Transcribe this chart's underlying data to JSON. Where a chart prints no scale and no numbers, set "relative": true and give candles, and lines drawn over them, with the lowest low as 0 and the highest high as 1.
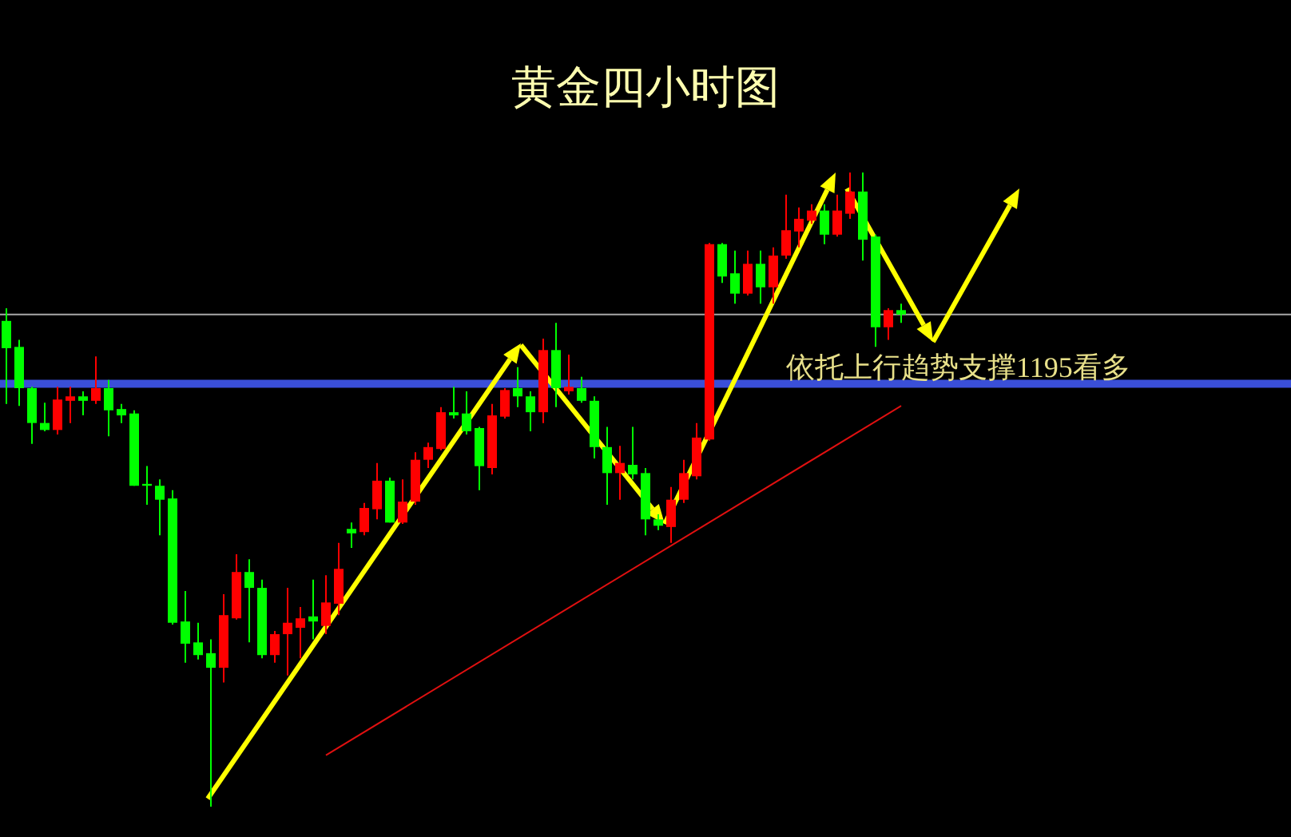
{
  "chart_data": {
    "type": "candlestick",
    "title": "黄金四小时图",
    "relative": true,
    "annotations": [
      "依托上行趋势支撑1195看多"
    ],
    "categories": [
      null,
      null,
      null,
      null,
      null,
      null,
      null,
      null,
      null,
      null,
      null,
      null,
      null,
      null,
      null,
      null,
      null,
      null,
      null,
      null,
      null,
      null,
      null,
      null,
      null,
      null,
      null,
      null,
      null,
      null,
      null,
      null,
      null,
      null,
      null,
      null,
      null,
      null,
      null,
      null,
      null,
      null,
      null,
      null,
      null,
      null,
      null,
      null,
      null,
      null,
      null,
      null,
      null,
      null,
      null,
      null,
      null,
      null,
      null,
      null,
      null,
      null,
      null,
      null,
      null,
      null,
      null,
      null,
      null,
      null,
      null
    ],
    "ohlc": [
      [
        0.766,
        0.786,
        0.635,
        0.723
      ],
      [
        0.725,
        0.736,
        0.632,
        0.66
      ],
      [
        0.66,
        0.662,
        0.572,
        0.605
      ],
      [
        0.605,
        0.637,
        0.592,
        0.594
      ],
      [
        0.594,
        0.662,
        0.587,
        0.642
      ],
      [
        0.64,
        0.662,
        0.605,
        0.647
      ],
      [
        0.647,
        0.655,
        0.617,
        0.64
      ],
      [
        0.64,
        0.71,
        0.635,
        0.66
      ],
      [
        0.66,
        0.673,
        0.584,
        0.625
      ],
      [
        0.627,
        0.635,
        0.605,
        0.617
      ],
      [
        0.62,
        0.625,
        0.506,
        0.506
      ],
      [
        0.509,
        0.537,
        0.476,
        0.506
      ],
      [
        0.506,
        0.516,
        0.428,
        0.484
      ],
      [
        0.486,
        0.499,
        0.287,
        0.29
      ],
      [
        0.292,
        0.34,
        0.227,
        0.257
      ],
      [
        0.259,
        0.29,
        0.232,
        0.239
      ],
      [
        0.242,
        0.264,
        0,
        0.219
      ],
      [
        0.219,
        0.335,
        0.196,
        0.302
      ],
      [
        0.297,
        0.398,
        0.295,
        0.37
      ],
      [
        0.37,
        0.39,
        0.259,
        0.345
      ],
      [
        0.345,
        0.358,
        0.234,
        0.239
      ],
      [
        0.239,
        0.277,
        0.227,
        0.272
      ],
      [
        0.272,
        0.345,
        0.207,
        0.29
      ],
      [
        0.282,
        0.315,
        0.234,
        0.297
      ],
      [
        0.3,
        0.358,
        0.264,
        0.292
      ],
      [
        0.285,
        0.365,
        0.272,
        0.322
      ],
      [
        0.32,
        0.416,
        0.302,
        0.375
      ],
      [
        0.438,
        0.448,
        0.408,
        0.431
      ],
      [
        0.433,
        0.479,
        0.428,
        0.471
      ],
      [
        0.469,
        0.542,
        0.453,
        0.514
      ],
      [
        0.514,
        0.519,
        0.448,
        0.448
      ],
      [
        0.448,
        0.516,
        0.446,
        0.481
      ],
      [
        0.481,
        0.559,
        0.476,
        0.547
      ],
      [
        0.547,
        0.574,
        0.534,
        0.567
      ],
      [
        0.564,
        0.63,
        0.562,
        0.622
      ],
      [
        0.622,
        0.662,
        0.612,
        0.617
      ],
      [
        0.62,
        0.655,
        0.587,
        0.592
      ],
      [
        0.597,
        0.599,
        0.499,
        0.537
      ],
      [
        0.534,
        0.635,
        0.524,
        0.617
      ],
      [
        0.615,
        0.66,
        0.612,
        0.657
      ],
      [
        0.66,
        0.693,
        0.63,
        0.647
      ],
      [
        0.647,
        0.655,
        0.592,
        0.622
      ],
      [
        0.622,
        0.738,
        0.605,
        0.72
      ],
      [
        0.72,
        0.763,
        0.63,
        0.66
      ],
      [
        0.655,
        0.713,
        0.65,
        0.662
      ],
      [
        0.66,
        0.678,
        0.637,
        0.64
      ],
      [
        0.64,
        0.647,
        0.549,
        0.567
      ],
      [
        0.567,
        0.599,
        0.476,
        0.526
      ],
      [
        0.526,
        0.569,
        0.484,
        0.542
      ],
      [
        0.539,
        0.599,
        0.516,
        0.524
      ],
      [
        0.526,
        0.534,
        0.428,
        0.453
      ],
      [
        0.453,
        0.461,
        0.436,
        0.443
      ],
      [
        0.441,
        0.504,
        0.416,
        0.484
      ],
      [
        0.484,
        0.547,
        0.479,
        0.526
      ],
      [
        0.521,
        0.605,
        0.516,
        0.582
      ],
      [
        0.579,
        0.889,
        0.577,
        0.887
      ],
      [
        0.887,
        0.889,
        0.826,
        0.836
      ],
      [
        0.841,
        0.877,
        0.793,
        0.809
      ],
      [
        0.809,
        0.877,
        0.806,
        0.856
      ],
      [
        0.856,
        0.877,
        0.793,
        0.819
      ],
      [
        0.819,
        0.882,
        0.793,
        0.869
      ],
      [
        0.869,
        0.965,
        0.864,
        0.909
      ],
      [
        0.907,
        0.945,
        0.882,
        0.927
      ],
      [
        0.924,
        0.95,
        0.919,
        0.94
      ],
      [
        0.94,
        0.95,
        0.887,
        0.902
      ],
      [
        0.902,
        0.965,
        0.899,
        0.94
      ],
      [
        0.935,
        1,
        0.927,
        0.97
      ],
      [
        0.97,
        1,
        0.861,
        0.894
      ],
      [
        0.899,
        0.902,
        0.725,
        0.756
      ],
      [
        0.756,
        0.786,
        0.736,
        0.783
      ],
      [
        0.783,
        0.793,
        0.763,
        0.776
      ]
    ],
    "colors": [
      "#00ff00",
      "#00ff00",
      "#00ff00",
      "#00ff00",
      "#ff0000",
      "#ff0000",
      "#00ff00",
      "#ff0000",
      "#00ff00",
      "#00ff00",
      "#00ff00",
      "#00ff00",
      "#00ff00",
      "#00ff00",
      "#00ff00",
      "#00ff00",
      "#00ff00",
      "#ff0000",
      "#ff0000",
      "#00ff00",
      "#00ff00",
      "#ff0000",
      "#ff0000",
      "#ff0000",
      "#00ff00",
      "#ff0000",
      "#ff0000",
      "#00ff00",
      "#ff0000",
      "#ff0000",
      "#00ff00",
      "#ff0000",
      "#ff0000",
      "#ff0000",
      "#ff0000",
      "#00ff00",
      "#00ff00",
      "#00ff00",
      "#ff0000",
      "#ff0000",
      "#00ff00",
      "#00ff00",
      "#ff0000",
      "#00ff00",
      "#ff0000",
      "#00ff00",
      "#00ff00",
      "#00ff00",
      "#ff0000",
      "#00ff00",
      "#00ff00",
      "#00ff00",
      "#ff0000",
      "#ff0000",
      "#ff0000",
      "#ff0000",
      "#00ff00",
      "#00ff00",
      "#ff0000",
      "#00ff00",
      "#ff0000",
      "#ff0000",
      "#ff0000",
      "#ff0000",
      "#00ff00",
      "#ff0000",
      "#ff0000",
      "#00ff00",
      "#00ff00",
      "#ff0000",
      "#00ff00"
    ],
    "series": [
      {
        "type": "line",
        "color": "#e01010",
        "values": [
          null,
          null,
          null,
          null,
          null,
          null,
          null,
          null,
          null,
          null,
          null,
          null,
          null,
          null,
          null,
          null,
          null,
          null,
          null,
          null,
          null,
          null,
          null,
          null,
          null,
          0.081,
          null,
          null,
          null,
          null,
          null,
          null,
          null,
          null,
          null,
          null,
          null,
          null,
          null,
          null,
          null,
          null,
          null,
          null,
          null,
          null,
          null,
          null,
          null,
          null,
          null,
          null,
          null,
          null,
          null,
          null,
          null,
          null,
          null,
          null,
          null,
          null,
          null,
          null,
          null,
          null,
          null,
          null,
          null,
          null,
          0.632
        ]
      }
    ],
    "ref_lines": [
      {
        "axis": "y",
        "value": 0.776,
        "color": "#a8a8a8"
      },
      {
        "axis": "y",
        "value": 0.667,
        "color": "#3a4fd8"
      }
    ]
  }
}
